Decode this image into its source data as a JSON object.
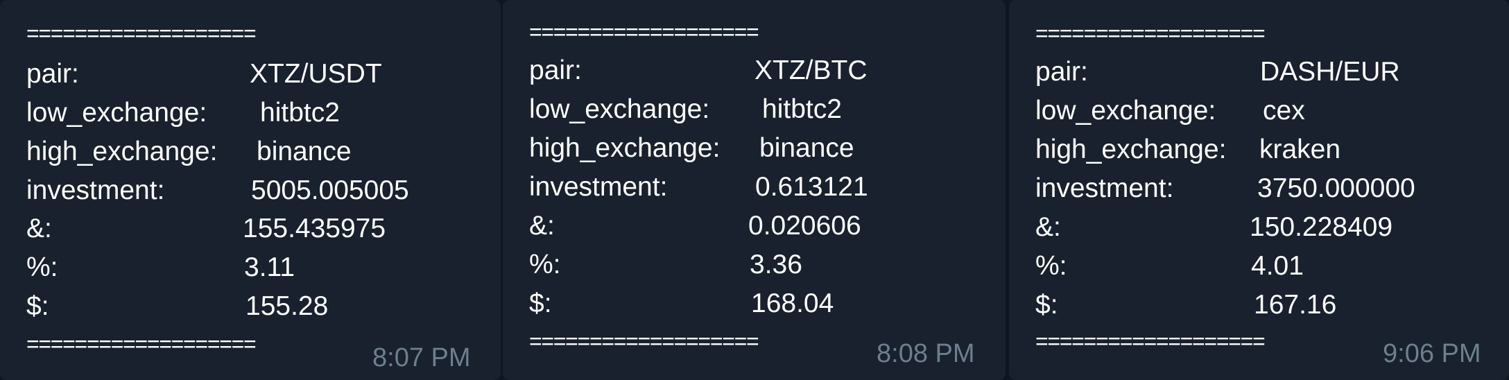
{
  "messages": [
    {
      "separator_top": "===================",
      "separator_bottom": "===================",
      "rows": [
        {
          "key": "pair:",
          "value": "XTZ/USDT"
        },
        {
          "key": "low_exchange:",
          "value": "hitbtc2"
        },
        {
          "key": "high_exchange:",
          "value": "binance"
        },
        {
          "key": "investment:",
          "value": "5005.005005"
        },
        {
          "key": "&:",
          "value": "155.435975"
        },
        {
          "key": "%:",
          "value": "3.11"
        },
        {
          "key": "$:",
          "value": "155.28"
        }
      ],
      "time": "8:07 PM"
    },
    {
      "separator_top": "===================",
      "separator_bottom": "===================",
      "rows": [
        {
          "key": "pair:",
          "value": "XTZ/BTC"
        },
        {
          "key": "low_exchange:",
          "value": "hitbtc2"
        },
        {
          "key": "high_exchange:",
          "value": "binance"
        },
        {
          "key": "investment:",
          "value": "0.613121"
        },
        {
          "key": "&:",
          "value": "0.020606"
        },
        {
          "key": "%:",
          "value": "3.36"
        },
        {
          "key": "$:",
          "value": "168.04"
        }
      ],
      "time": "8:08 PM"
    },
    {
      "separator_top": "===================",
      "separator_bottom": "===================",
      "rows": [
        {
          "key": "pair:",
          "value": "DASH/EUR"
        },
        {
          "key": "low_exchange:",
          "value": "cex"
        },
        {
          "key": "high_exchange:",
          "value": "kraken"
        },
        {
          "key": "investment:",
          "value": "3750.000000"
        },
        {
          "key": "&:",
          "value": "150.228409"
        },
        {
          "key": "%:",
          "value": "4.01"
        },
        {
          "key": "$:",
          "value": "167.16"
        }
      ],
      "time": "9:06 PM"
    }
  ]
}
